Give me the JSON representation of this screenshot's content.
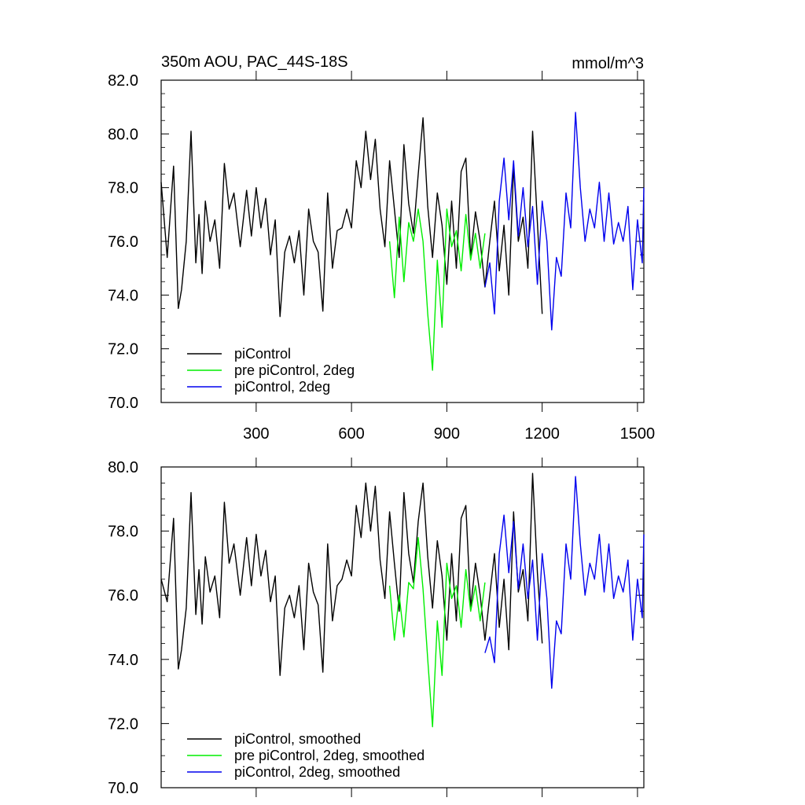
{
  "chart_data": [
    {
      "type": "line",
      "title": "350m AOU, PAC_44S-18S",
      "units": "mmol/m^3",
      "xlim": [
        1,
        1520
      ],
      "ylim": [
        70,
        82
      ],
      "xticks": [
        300,
        600,
        900,
        1200,
        1500
      ],
      "xtick_labels": [
        "300",
        "600",
        "900",
        "1200",
        "1500"
      ],
      "yticks": [
        70,
        72,
        74,
        76,
        78,
        80,
        82
      ],
      "ytick_labels": [
        "70.0",
        "72.0",
        "74.0",
        "76.0",
        "78.0",
        "80.0",
        "82.0"
      ],
      "legend_position": "bottom-left",
      "series": [
        {
          "name": "piControl",
          "color": "#000000",
          "x": [
            1,
            20,
            40,
            55,
            65,
            80,
            95,
            110,
            120,
            130,
            140,
            155,
            170,
            185,
            200,
            215,
            230,
            250,
            270,
            285,
            300,
            315,
            330,
            345,
            360,
            375,
            390,
            405,
            420,
            435,
            450,
            465,
            480,
            495,
            510,
            525,
            540,
            555,
            570,
            585,
            600,
            615,
            630,
            645,
            660,
            675,
            690,
            705,
            720,
            735,
            750,
            765,
            780,
            795,
            810,
            825,
            840,
            855,
            870,
            885,
            900,
            915,
            930,
            945,
            960,
            975,
            990,
            1005,
            1020,
            1035,
            1050,
            1065,
            1080,
            1095,
            1110,
            1125,
            1140,
            1155,
            1170,
            1185,
            1200
          ],
          "values": [
            78.2,
            75.4,
            78.8,
            73.5,
            74.2,
            76.0,
            80.1,
            75.2,
            77.0,
            74.8,
            77.5,
            76.0,
            76.8,
            75.0,
            78.9,
            77.2,
            77.8,
            75.8,
            77.9,
            76.2,
            78.0,
            76.5,
            77.6,
            75.5,
            76.8,
            73.2,
            75.6,
            76.2,
            75.2,
            76.4,
            74.0,
            77.2,
            76.0,
            75.6,
            73.4,
            77.8,
            75.0,
            76.4,
            76.5,
            77.2,
            76.5,
            79.0,
            78.0,
            80.1,
            78.3,
            79.8,
            77.2,
            75.8,
            79.0,
            77.2,
            75.4,
            79.6,
            77.4,
            76.3,
            78.5,
            80.6,
            77.3,
            75.4,
            77.8,
            76.6,
            74.4,
            77.5,
            75.0,
            78.6,
            79.1,
            75.4,
            77.1,
            76.0,
            74.3,
            76.0,
            77.5,
            74.9,
            76.6,
            74.0,
            78.8,
            76.0,
            76.9,
            75.0,
            80.1,
            76.7,
            73.3
          ]
        },
        {
          "name": "pre piControl, 2deg",
          "color": "#00ee00",
          "x": [
            720,
            735,
            750,
            765,
            780,
            795,
            810,
            825,
            840,
            855,
            870,
            885,
            900,
            915,
            930,
            945,
            960,
            975,
            990,
            1005,
            1020
          ],
          "values": [
            76.0,
            73.9,
            76.9,
            74.5,
            76.7,
            76.0,
            77.2,
            76.0,
            73.3,
            71.2,
            75.3,
            72.8,
            77.2,
            75.8,
            76.4,
            74.9,
            77.0,
            75.3,
            76.3,
            75.0,
            76.3
          ]
        },
        {
          "name": "piControl, 2deg",
          "color": "#0000ee",
          "x": [
            1020,
            1035,
            1050,
            1065,
            1080,
            1095,
            1110,
            1125,
            1140,
            1155,
            1170,
            1185,
            1200,
            1215,
            1230,
            1245,
            1260,
            1275,
            1290,
            1305,
            1320,
            1335,
            1350,
            1365,
            1380,
            1395,
            1410,
            1425,
            1440,
            1455,
            1470,
            1485,
            1500,
            1515,
            1520
          ],
          "values": [
            74.3,
            75.2,
            73.3,
            77.5,
            79.1,
            76.8,
            79.0,
            76.2,
            78.0,
            75.8,
            77.3,
            74.4,
            77.5,
            76.0,
            72.7,
            75.4,
            74.7,
            77.8,
            76.5,
            80.8,
            78.0,
            76.0,
            77.2,
            76.5,
            78.2,
            76.0,
            77.8,
            75.9,
            76.7,
            76.0,
            77.3,
            74.2,
            76.8,
            75.2,
            78.0
          ]
        }
      ]
    },
    {
      "type": "line",
      "title": "",
      "xlim": [
        1,
        1520
      ],
      "ylim": [
        70,
        80
      ],
      "xticks": [
        300,
        600,
        900,
        1200,
        1500
      ],
      "xtick_labels": [],
      "yticks": [
        70,
        72,
        74,
        76,
        78,
        80
      ],
      "ytick_labels": [
        "70.0",
        "72.0",
        "74.0",
        "76.0",
        "78.0",
        "80.0"
      ],
      "legend_position": "bottom-left",
      "series": [
        {
          "name": "piControl, smoothed",
          "color": "#000000",
          "x": [
            1,
            20,
            40,
            55,
            65,
            80,
            95,
            110,
            120,
            130,
            140,
            155,
            170,
            185,
            200,
            215,
            230,
            250,
            270,
            285,
            300,
            315,
            330,
            345,
            360,
            375,
            390,
            405,
            420,
            435,
            450,
            465,
            480,
            495,
            510,
            525,
            540,
            555,
            570,
            585,
            600,
            615,
            630,
            645,
            660,
            675,
            690,
            705,
            720,
            735,
            750,
            765,
            780,
            795,
            810,
            825,
            840,
            855,
            870,
            885,
            900,
            915,
            930,
            945,
            960,
            975,
            990,
            1005,
            1020,
            1035,
            1050,
            1065,
            1080,
            1095,
            1110,
            1125,
            1140,
            1155,
            1170,
            1185,
            1200
          ],
          "values": [
            76.5,
            75.8,
            78.4,
            73.7,
            74.3,
            75.6,
            79.2,
            75.4,
            76.8,
            75.1,
            77.2,
            76.1,
            76.6,
            75.3,
            78.9,
            77.0,
            77.6,
            76.0,
            77.8,
            76.3,
            77.9,
            76.6,
            77.4,
            75.8,
            76.6,
            73.5,
            75.6,
            76.0,
            75.3,
            76.3,
            74.3,
            77.0,
            76.1,
            75.7,
            73.6,
            77.6,
            75.2,
            76.3,
            76.5,
            77.1,
            76.6,
            78.8,
            77.8,
            79.5,
            78.0,
            79.4,
            77.1,
            75.9,
            78.6,
            77.0,
            75.5,
            79.2,
            77.3,
            76.4,
            78.3,
            79.5,
            77.2,
            75.6,
            77.7,
            76.6,
            74.6,
            77.3,
            75.2,
            78.4,
            78.8,
            75.6,
            77.0,
            76.0,
            74.6,
            76.0,
            77.3,
            75.0,
            76.5,
            74.3,
            78.6,
            76.1,
            76.8,
            75.2,
            79.8,
            76.7,
            74.5
          ]
        },
        {
          "name": "pre piControl, 2deg, smoothed",
          "color": "#00ee00",
          "x": [
            720,
            735,
            750,
            765,
            780,
            795,
            810,
            825,
            840,
            855,
            870,
            885,
            900,
            915,
            930,
            945,
            960,
            975,
            990,
            1005,
            1020
          ],
          "values": [
            76.3,
            74.6,
            76.0,
            74.7,
            76.4,
            76.2,
            77.8,
            76.2,
            74.0,
            71.9,
            75.2,
            73.5,
            77.0,
            75.9,
            76.3,
            75.0,
            76.8,
            75.5,
            76.3,
            75.2,
            76.4
          ]
        },
        {
          "name": "piControl, 2deg, smoothed",
          "color": "#0000ee",
          "x": [
            1020,
            1035,
            1050,
            1065,
            1080,
            1095,
            1110,
            1125,
            1140,
            1155,
            1170,
            1185,
            1200,
            1215,
            1230,
            1245,
            1260,
            1275,
            1290,
            1305,
            1320,
            1335,
            1350,
            1365,
            1380,
            1395,
            1410,
            1425,
            1440,
            1455,
            1470,
            1485,
            1500,
            1515,
            1520
          ],
          "values": [
            74.2,
            74.7,
            73.9,
            77.3,
            78.5,
            76.7,
            78.3,
            76.2,
            77.6,
            75.9,
            77.1,
            74.6,
            77.3,
            75.9,
            73.1,
            75.2,
            74.8,
            77.6,
            76.5,
            79.7,
            77.6,
            76.0,
            77.0,
            76.5,
            77.9,
            76.1,
            77.6,
            75.9,
            76.6,
            76.1,
            77.1,
            74.6,
            76.5,
            75.3,
            77.9
          ]
        }
      ]
    }
  ]
}
